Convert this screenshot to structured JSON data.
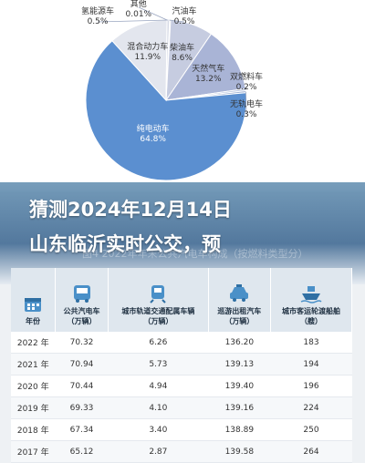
{
  "chart_data": [
    {
      "type": "pie",
      "title": "",
      "slices": [
        {
          "label": "其他",
          "value": 0.01,
          "display": "0.01%",
          "color": "#eaeaea"
        },
        {
          "label": "汽油车",
          "value": 0.5,
          "display": "0.5%",
          "color": "#dcdcdc"
        },
        {
          "label": "柴油车",
          "value": 8.6,
          "display": "8.6%",
          "color": "#c6cce0"
        },
        {
          "label": "天然气车",
          "value": 13.2,
          "display": "13.2%",
          "color": "#a9b4d6"
        },
        {
          "label": "双燃料车",
          "value": 0.2,
          "display": "0.2%",
          "color": "#b8c4de"
        },
        {
          "label": "无轨电车",
          "value": 0.3,
          "display": "0.3%",
          "color": "#9fb0d2"
        },
        {
          "label": "纯电动车",
          "value": 64.8,
          "display": "64.8%",
          "color": "#5b8fd0"
        },
        {
          "label": "混合动力车",
          "value": 11.9,
          "display": "11.9%",
          "color": "#e3e6ee"
        },
        {
          "label": "氢能源车",
          "value": 0.5,
          "display": "0.5%",
          "color": "#d7dbe6"
        }
      ]
    },
    {
      "type": "table",
      "columns": [
        "年份",
        "公共汽电车\n（万辆）",
        "城市轨道交通配属车辆\n（万辆）",
        "巡游出租汽车\n（万辆）",
        "城市客运轮渡船舶\n（艘）"
      ],
      "rows": [
        [
          "2022 年",
          "70.32",
          "6.26",
          "136.20",
          "183"
        ],
        [
          "2021 年",
          "70.94",
          "5.73",
          "139.13",
          "194"
        ],
        [
          "2020 年",
          "70.44",
          "4.94",
          "139.40",
          "196"
        ],
        [
          "2019 年",
          "69.33",
          "4.10",
          "139.16",
          "224"
        ],
        [
          "2018 年",
          "67.34",
          "3.40",
          "138.89",
          "250"
        ],
        [
          "2017 年",
          "65.12",
          "2.87",
          "139.58",
          "264"
        ]
      ]
    }
  ],
  "headline": {
    "line1": "猜测2024年12月14日",
    "line2": "山东临沂实时公交，预"
  },
  "caption_faded": "图4  2022年年末公共汽电车构成（按燃料类型分）",
  "table_header_labels": {
    "year": "年份",
    "bus": "公共汽电车",
    "bus_unit": "（万辆）",
    "rail": "城市轨道交通配属车辆",
    "rail_unit": "（万辆）",
    "taxi": "巡游出租汽车",
    "taxi_unit": "（万辆）",
    "ferry": "城市客运轮渡船舶",
    "ferry_unit": "（艘）"
  },
  "icons": [
    "calendar-icon",
    "bus-icon",
    "train-icon",
    "taxi-icon",
    "ship-icon"
  ]
}
